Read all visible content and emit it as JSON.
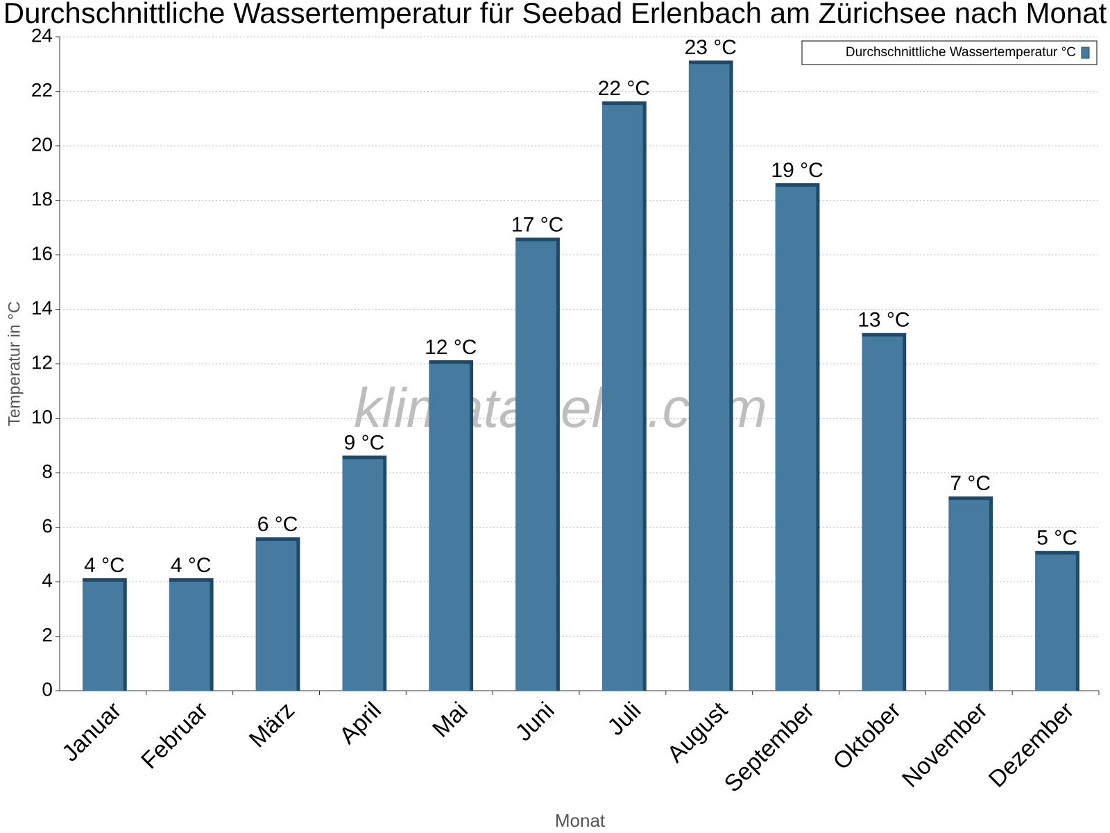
{
  "chart_data": {
    "type": "bar",
    "title": "Durchschnittliche Wassertemperatur für Seebad Erlenbach am Zürichsee nach Monat",
    "watermark": "klimatabelle.com",
    "x_label": "Monat",
    "y_label": "Temperatur in °C",
    "categories": [
      "Januar",
      "Februar",
      "März",
      "April",
      "Mai",
      "Juni",
      "Juli",
      "August",
      "September",
      "Oktober",
      "November",
      "Dezember"
    ],
    "series": [
      {
        "name": "Durchschnittliche Wassertemperatur °C",
        "color": "#467a9e",
        "values": [
          4,
          4,
          5.5,
          8.5,
          12,
          16.5,
          21.5,
          23,
          18.5,
          13,
          7,
          5
        ],
        "value_labels": [
          "4 °C",
          "4 °C",
          "6 °C",
          "9 °C",
          "12 °C",
          "17 °C",
          "22 °C",
          "23 °C",
          "19 °C",
          "13 °C",
          "7 °C",
          "5 °C"
        ]
      }
    ],
    "ylim": [
      0,
      24
    ],
    "yticks": [
      0,
      2,
      4,
      6,
      8,
      10,
      12,
      14,
      16,
      18,
      20,
      22,
      24
    ],
    "grid": true,
    "legend": "top-right"
  }
}
